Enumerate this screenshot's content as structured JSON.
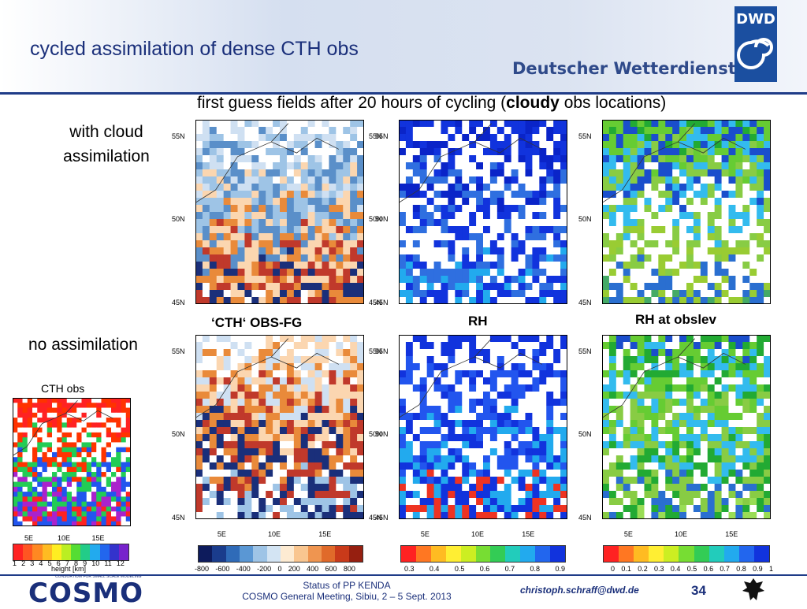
{
  "header": {
    "title": "cycled assimilation of dense CTH obs",
    "org_name": "Deutscher Wetterdienst",
    "logo_text": "DWD"
  },
  "subtitle": {
    "part1": "first guess fields after 20 hours of cycling  (",
    "bold": "cloudy",
    "part2": "  obs locations)"
  },
  "rows": {
    "with_label": "with cloud assimilation",
    "no_label": "no  assimilation"
  },
  "panels": {
    "cth_title": "‘CTH‘ OBS-FG",
    "rh_title": "RH",
    "rh_obslev_title": "RH at obslev",
    "cth_obs_title": "CTH obs"
  },
  "axes": {
    "lat_ticks": [
      "55N",
      "50N",
      "45N"
    ],
    "lon_ticks": [
      "5E",
      "10E",
      "15E"
    ]
  },
  "colorbars": {
    "cth_obs": {
      "ticks": [
        "1",
        "2",
        "3",
        "4",
        "5",
        "6",
        "7",
        "8",
        "9",
        "10",
        "11",
        "12"
      ],
      "label": "height [km]"
    },
    "obs_fg": {
      "ticks": [
        "-800",
        "-600",
        "-400",
        "-200",
        "0",
        "200",
        "400",
        "600",
        "800"
      ]
    },
    "rh": {
      "ticks": [
        "0.3",
        "0.4",
        "0.5",
        "0.6",
        "0.7",
        "0.8",
        "0.9"
      ]
    },
    "rh_obslev": {
      "ticks": [
        "0",
        "0.1",
        "0.2",
        "0.3",
        "0.4",
        "0.5",
        "0.6",
        "0.7",
        "0.8",
        "0.9",
        "1"
      ]
    }
  },
  "footer": {
    "status": "Status of PP KENDA",
    "meeting": "COSMO General Meeting, Sibiu, 2 – 5 Sept. 2013",
    "email": "christoph.schraff@dwd.de",
    "page": "34",
    "cosmo_logo": "COSMO",
    "cosmo_tagline": "CONSORTIUM FOR SMALL SCALE MODELING"
  },
  "colors": {
    "accent": "#1a2f7a",
    "rule": "#1f3c88",
    "dwd_blue": "#1b4fa0"
  }
}
